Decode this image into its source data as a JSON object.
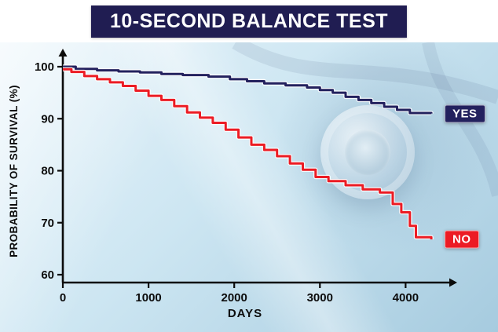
{
  "colors": {
    "banner_bg": "#201d52",
    "background": "#cde6f2",
    "axis": "#0c0c0c"
  },
  "chart_data": {
    "type": "line",
    "subtype": "step-survival-curve",
    "title": "10-SECOND BALANCE TEST",
    "xlabel": "DAYS",
    "ylabel": "PROBABILITY OF SURVIVAL (%)",
    "xlim": [
      0,
      4400
    ],
    "ylim": [
      60,
      100
    ],
    "xticks": [
      0,
      1000,
      2000,
      3000,
      4000
    ],
    "yticks": [
      100,
      90,
      80,
      70,
      60
    ],
    "grid": false,
    "legend_position": "right-of-line-ends",
    "series": [
      {
        "name": "YES",
        "color": "#23215e",
        "x": [
          0,
          150,
          400,
          650,
          900,
          1150,
          1400,
          1700,
          1950,
          2150,
          2350,
          2600,
          2850,
          3000,
          3150,
          3300,
          3450,
          3600,
          3750,
          3900,
          4050,
          4300
        ],
        "y": [
          100,
          99.6,
          99.3,
          99.1,
          98.9,
          98.6,
          98.4,
          98.1,
          97.6,
          97.2,
          96.8,
          96.4,
          96.0,
          95.5,
          95.0,
          94.2,
          93.6,
          93.0,
          92.3,
          91.7,
          91.1,
          91.0
        ]
      },
      {
        "name": "NO",
        "color": "#ec1c24",
        "x": [
          0,
          100,
          250,
          400,
          550,
          700,
          850,
          1000,
          1150,
          1300,
          1450,
          1600,
          1750,
          1900,
          2050,
          2200,
          2350,
          2500,
          2650,
          2800,
          2950,
          3100,
          3300,
          3500,
          3700,
          3850,
          3950,
          4050,
          4120,
          4300
        ],
        "y": [
          99.5,
          99.0,
          98.2,
          97.6,
          97.0,
          96.3,
          95.4,
          94.4,
          93.6,
          92.4,
          91.2,
          90.2,
          89.2,
          87.9,
          86.4,
          85.0,
          84.0,
          82.8,
          81.4,
          80.2,
          78.8,
          78.0,
          77.2,
          76.4,
          75.8,
          73.6,
          72.0,
          69.4,
          67.2,
          66.8
        ]
      }
    ]
  }
}
